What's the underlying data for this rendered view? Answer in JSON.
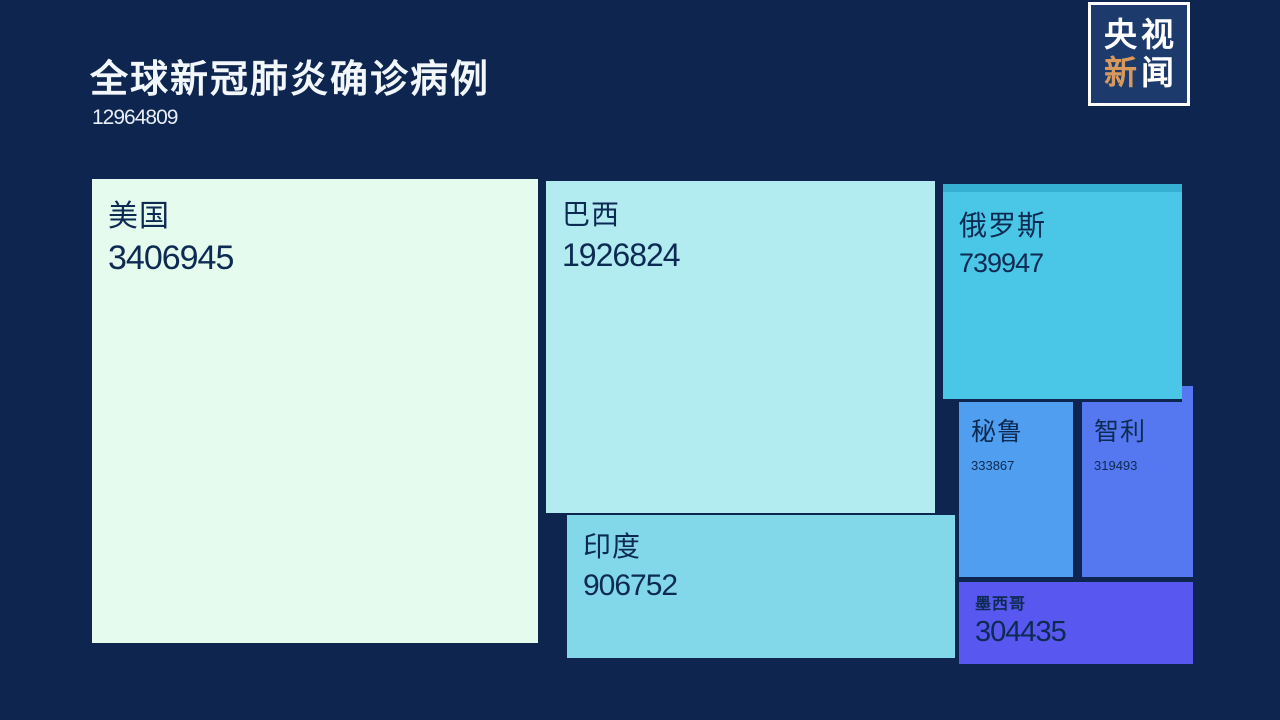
{
  "page": {
    "background": "#0e2550"
  },
  "header": {
    "title": "全球新冠肺炎确诊病例",
    "total": "12964809"
  },
  "logo": {
    "name": "央视新闻",
    "chars": [
      "央",
      "视",
      "新",
      "闻"
    ],
    "accent_color": "#d89a5c"
  },
  "chart_data": {
    "type": "treemap",
    "title": "全球新冠肺炎确诊病例",
    "total": 12964809,
    "legend": false,
    "layout": "squarified treemap on dark navy background, values descending from light mint to purple-blue",
    "items": [
      {
        "name": "美国",
        "value": 3406945,
        "color": "#e4fbee"
      },
      {
        "name": "巴西",
        "value": 1926824,
        "color": "#b2ebf0"
      },
      {
        "name": "印度",
        "value": 906752,
        "color": "#82d8e9"
      },
      {
        "name": "俄罗斯",
        "value": 739947,
        "color": "#4ac6e6"
      },
      {
        "name": "秘鲁",
        "value": 333867,
        "color": "#4f9ef0"
      },
      {
        "name": "智利",
        "value": 319493,
        "color": "#5578f0"
      },
      {
        "name": "墨西哥",
        "value": 304435,
        "color": "#5857f0"
      }
    ]
  }
}
